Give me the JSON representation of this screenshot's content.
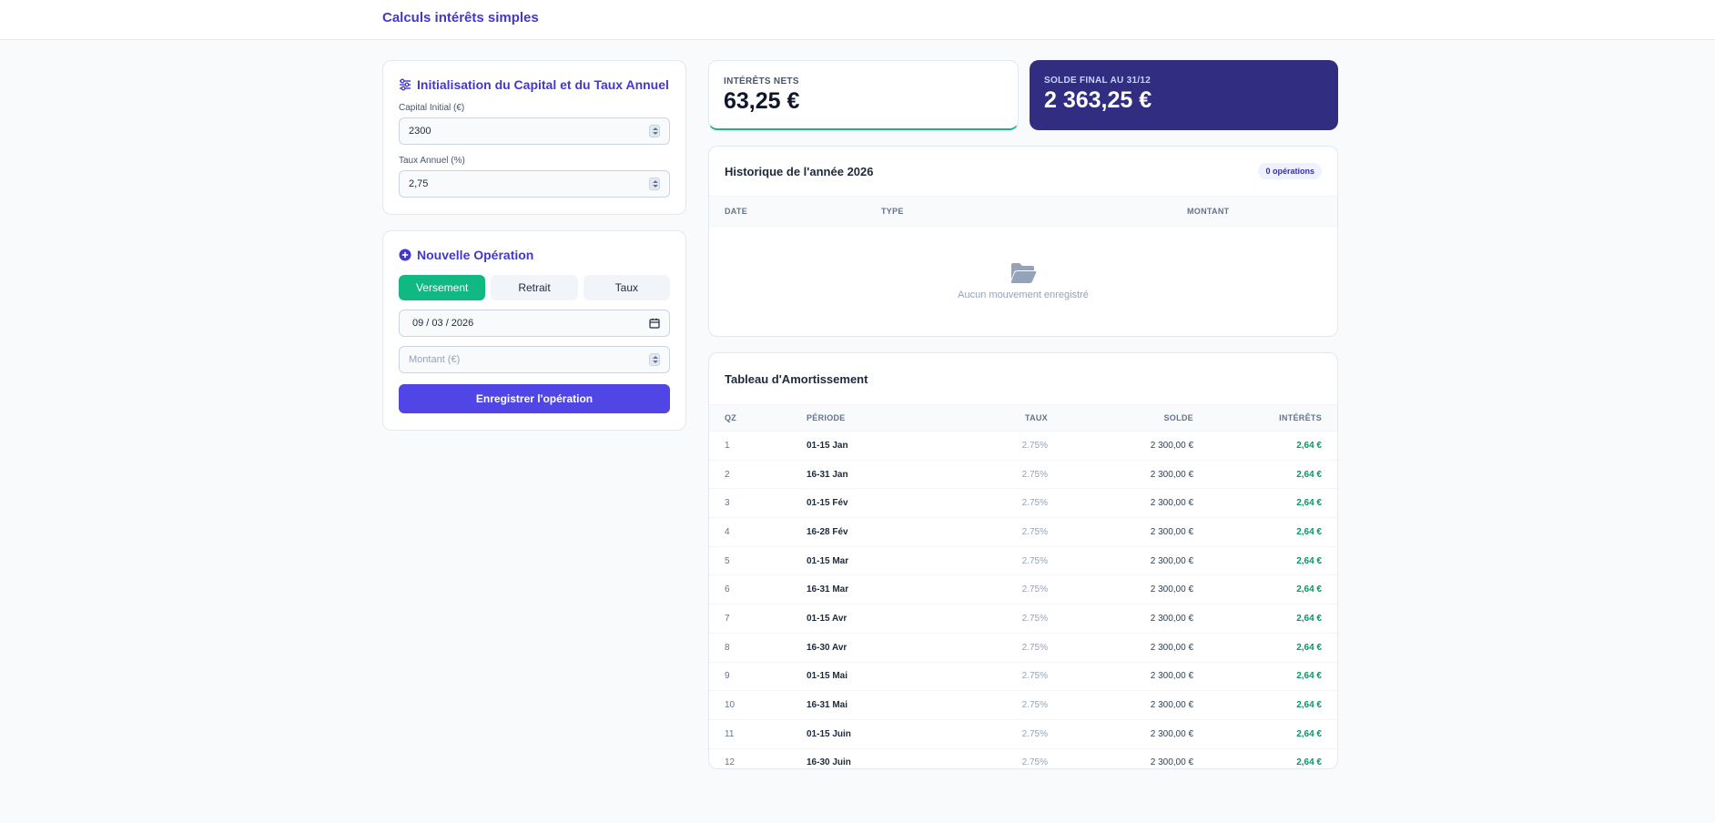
{
  "header": {
    "title": "Calculs intérêts simples"
  },
  "init_card": {
    "title": "Initialisation du Capital et du Taux Annuel",
    "capital_label": "Capital Initial (€)",
    "capital_value": "2300",
    "taux_label": "Taux Annuel (%)",
    "taux_value": "2,75"
  },
  "op_card": {
    "title": "Nouvelle Opération",
    "tabs": [
      "Versement",
      "Retrait",
      "Taux"
    ],
    "date_value": "09 / 03 / 2026",
    "montant_placeholder": "Montant (€)",
    "submit_label": "Enregistrer l'opération"
  },
  "stats": {
    "net_label": "INTÉRÊTS NETS",
    "net_value": "63,25 €",
    "final_label": "SOLDE FINAL AU 31/12",
    "final_value": "2 363,25 €"
  },
  "history": {
    "title": "Historique de l'année 2026",
    "badge": "0 opérations",
    "columns": [
      "DATE",
      "TYPE",
      "MONTANT"
    ],
    "empty_text": "Aucun mouvement enregistré"
  },
  "amort": {
    "title": "Tableau d'Amortissement",
    "columns": [
      "QZ",
      "PÉRIODE",
      "TAUX",
      "SOLDE",
      "INTÉRÊTS"
    ],
    "rows": [
      {
        "qz": "1",
        "periode": "01-15 Jan",
        "taux": "2.75%",
        "solde": "2 300,00 €",
        "interets": "2,64 €"
      },
      {
        "qz": "2",
        "periode": "16-31 Jan",
        "taux": "2.75%",
        "solde": "2 300,00 €",
        "interets": "2,64 €"
      },
      {
        "qz": "3",
        "periode": "01-15 Fév",
        "taux": "2.75%",
        "solde": "2 300,00 €",
        "interets": "2,64 €"
      },
      {
        "qz": "4",
        "periode": "16-28 Fév",
        "taux": "2.75%",
        "solde": "2 300,00 €",
        "interets": "2,64 €"
      },
      {
        "qz": "5",
        "periode": "01-15 Mar",
        "taux": "2.75%",
        "solde": "2 300,00 €",
        "interets": "2,64 €"
      },
      {
        "qz": "6",
        "periode": "16-31 Mar",
        "taux": "2.75%",
        "solde": "2 300,00 €",
        "interets": "2,64 €"
      },
      {
        "qz": "7",
        "periode": "01-15 Avr",
        "taux": "2.75%",
        "solde": "2 300,00 €",
        "interets": "2,64 €"
      },
      {
        "qz": "8",
        "periode": "16-30 Avr",
        "taux": "2.75%",
        "solde": "2 300,00 €",
        "interets": "2,64 €"
      },
      {
        "qz": "9",
        "periode": "01-15 Mai",
        "taux": "2.75%",
        "solde": "2 300,00 €",
        "interets": "2,64 €"
      },
      {
        "qz": "10",
        "periode": "16-31 Mai",
        "taux": "2.75%",
        "solde": "2 300,00 €",
        "interets": "2,64 €"
      },
      {
        "qz": "11",
        "periode": "01-15 Juin",
        "taux": "2.75%",
        "solde": "2 300,00 €",
        "interets": "2,64 €"
      },
      {
        "qz": "12",
        "periode": "16-30 Juin",
        "taux": "2.75%",
        "solde": "2 300,00 €",
        "interets": "2,64 €"
      }
    ]
  },
  "colors": {
    "accent": "#4f46e5",
    "success": "#10b981",
    "dark": "#312e81"
  }
}
